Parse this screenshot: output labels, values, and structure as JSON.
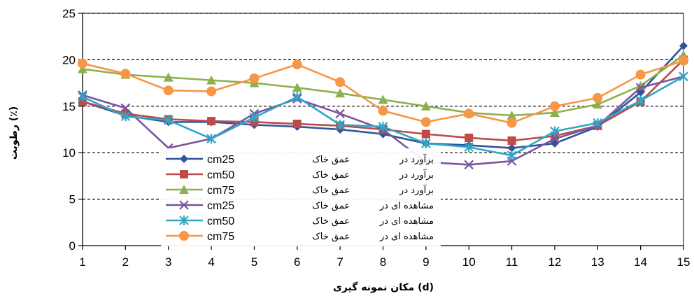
{
  "chart_data": {
    "type": "line",
    "title": "",
    "xlabel": "مکان نمونه گیری (d)",
    "ylabel": "رطوبت (٪)",
    "x": [
      1,
      2,
      3,
      4,
      5,
      6,
      7,
      8,
      9,
      10,
      11,
      12,
      13,
      14,
      15
    ],
    "xlim": [
      1,
      15
    ],
    "ylim": [
      0,
      25
    ],
    "yticks": [
      0,
      5,
      10,
      15,
      20,
      25
    ],
    "grid": "horizontal dashed",
    "legend_position": "inside-left",
    "series": [
      {
        "name": "برآورد در عمق خاک cm25",
        "label": "برآورد در",
        "depth": "عمق خاک",
        "unit": "cm25",
        "color": "#2f5597",
        "marker": "diamond",
        "values": [
          15.5,
          14.0,
          13.3,
          13.3,
          13.0,
          12.8,
          12.5,
          12.0,
          11.0,
          10.8,
          10.5,
          11.0,
          12.8,
          16.5,
          21.5
        ]
      },
      {
        "name": "برآورد در عمق خاک cm50",
        "label": "برآورد در",
        "depth": "عمق خاک",
        "unit": "cm50",
        "color": "#be4b48",
        "marker": "square",
        "values": [
          15.5,
          14.2,
          13.6,
          13.4,
          13.3,
          13.1,
          12.9,
          12.5,
          12.0,
          11.6,
          11.3,
          11.8,
          12.9,
          15.5,
          20.0
        ]
      },
      {
        "name": "برآورد در عمق خاک cm75",
        "label": "برآورد در",
        "depth": "عمق خاک",
        "unit": "cm75",
        "color": "#8db04f",
        "marker": "triangle",
        "values": [
          19.0,
          18.4,
          18.1,
          17.8,
          17.5,
          17.0,
          16.4,
          15.7,
          15.0,
          14.3,
          14.0,
          14.3,
          15.2,
          17.2,
          20.5
        ]
      },
      {
        "name": "مشاهده ای در عمق خاک cm25",
        "label": "مشاهده ای در",
        "depth": "عمق خاک",
        "unit": "cm25",
        "color": "#7a54a1",
        "marker": "x",
        "values": [
          16.2,
          14.8,
          10.5,
          11.5,
          14.2,
          15.8,
          14.2,
          12.5,
          9.0,
          8.7,
          9.1,
          11.5,
          12.9,
          17.0,
          18.2
        ]
      },
      {
        "name": "مشاهده ای در عمق خاک cm50",
        "label": "مشاهده ای در",
        "depth": "عمق خاک",
        "unit": "cm50",
        "color": "#31a6c6",
        "marker": "asterisk",
        "values": [
          16.0,
          13.9,
          13.5,
          11.5,
          13.8,
          16.0,
          13.0,
          12.8,
          11.0,
          10.6,
          9.7,
          12.3,
          13.2,
          15.6,
          18.2
        ]
      },
      {
        "name": "مشاهده ای در عمق خاک cm75",
        "label": "مشاهده ای در",
        "depth": "عمق خاک",
        "unit": "cm75",
        "color": "#f79646",
        "marker": "circle",
        "values": [
          19.6,
          18.5,
          16.7,
          16.6,
          18.0,
          19.5,
          17.6,
          14.5,
          13.3,
          14.2,
          13.2,
          15.0,
          15.9,
          18.4,
          19.9
        ]
      }
    ]
  }
}
